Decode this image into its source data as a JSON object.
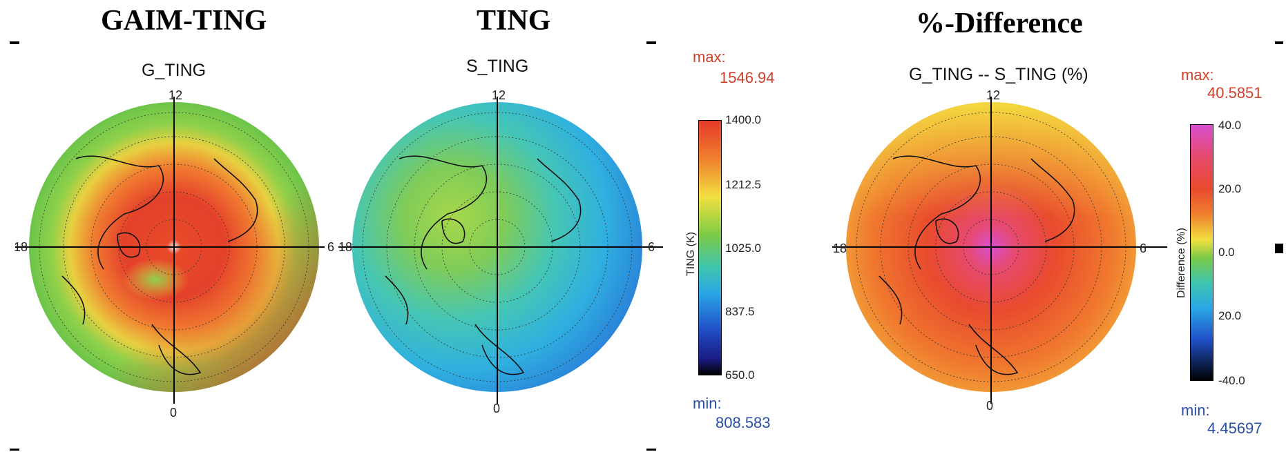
{
  "headers": {
    "left": "GAIM-TING",
    "middle": "TING",
    "right": "%-Difference"
  },
  "panels": {
    "g_ting": {
      "title": "G_TING",
      "lt_top": "12",
      "lt_left": "18",
      "lt_right": "6",
      "lt_bottom": "0"
    },
    "s_ting": {
      "title": "S_TING",
      "lt_top": "12",
      "lt_left": "18",
      "lt_right": "6",
      "lt_bottom": "0"
    },
    "diff": {
      "title": "G_TING -- S_TING (%)",
      "lt_top": "12",
      "lt_left": "18",
      "lt_right": "6",
      "lt_bottom": "0"
    }
  },
  "ting_scale": {
    "max_label": "max:",
    "max_value": "1546.94",
    "min_label": "min:",
    "min_value": "808.583",
    "axis_title": "TING (K)",
    "ticks": [
      "1400.0",
      "1212.5",
      "1025.0",
      "837.5",
      "650.0"
    ]
  },
  "diff_scale": {
    "max_label": "max:",
    "max_value": "40.5851",
    "min_label": "min:",
    "min_value": "4.45697",
    "axis_title": "Difference (%)",
    "ticks": [
      "40.0",
      "20.0",
      "0.0",
      "20.0",
      "-40.0"
    ]
  },
  "colors": {
    "max_text": "#d0402a",
    "min_text": "#2a4fa8"
  }
}
